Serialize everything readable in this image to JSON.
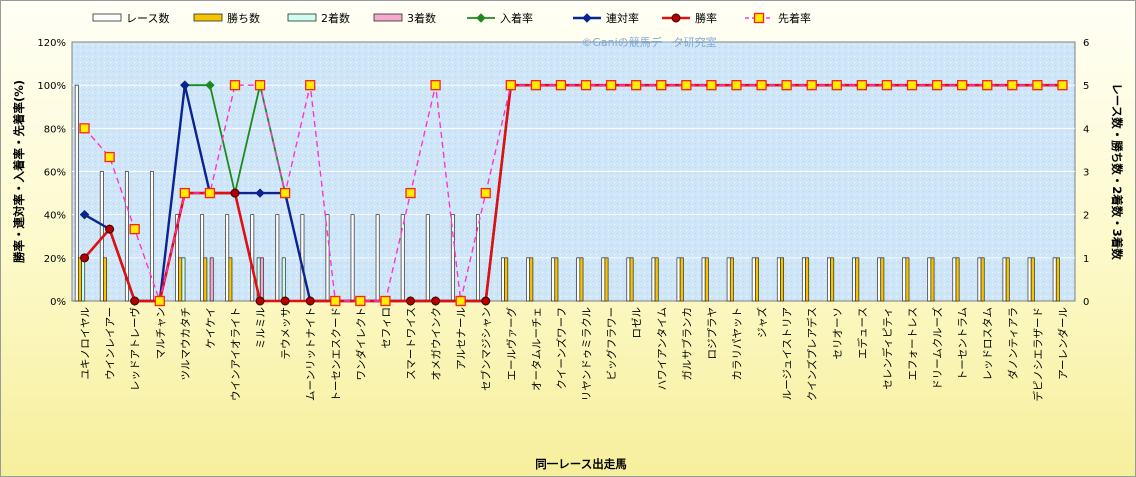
{
  "chart_data": {
    "type": "bar-line-combo",
    "watermark": "©Ganiの競馬データ研究室",
    "xlabel": "同一レース出走馬",
    "ylabel_left": "勝率・連対率・入着率・先着率(%)",
    "ylabel_right": "レース数・勝ち数・2着数・3着数",
    "ylim_left": [
      0,
      120
    ],
    "yticks_left": [
      "0%",
      "20%",
      "40%",
      "60%",
      "80%",
      "100%",
      "120%"
    ],
    "ylim_right": [
      0,
      6
    ],
    "yticks_right": [
      "0",
      "1",
      "2",
      "3",
      "4",
      "5",
      "6"
    ],
    "legend_position": "top",
    "categories": [
      "ユキノロイヤル",
      "ウインレイアー",
      "レッドアトレーヴ",
      "マルチャン",
      "ツルマウカタチ",
      "ケイケイ",
      "ウインアイオライト",
      "ミルミル",
      "テウメッサ",
      "ムーンリットナイト",
      "トーセンエスクード",
      "ワンダイレクト",
      "セフィロ",
      "スマートワイス",
      "オメガウインク",
      "アルセナール",
      "セブンマジシャン",
      "エールヴァーグ",
      "オータムルーチェ",
      "クイーンズワーフ",
      "リヤンドゥミラクル",
      "ビッグフラワー",
      "ロゼル",
      "ハワイアンタイム",
      "ガルサブランカ",
      "ロジプラヤ",
      "カラリパヤット",
      "ジャズ",
      "ルージュイストリア",
      "クインズプレアデス",
      "セリオーソ",
      "エデュース",
      "セレンディピティ",
      "エフォートレス",
      "ドリームクルーズ",
      "トーセントラム",
      "レッドロスタム",
      "ダノンティアラ",
      "デピノシエラザード",
      "アーレンダール"
    ],
    "series": [
      {
        "name": "レース数",
        "kind": "bar",
        "axis": "right",
        "values": [
          5,
          3,
          3,
          3,
          2,
          2,
          2,
          2,
          2,
          2,
          2,
          2,
          2,
          2,
          2,
          2,
          2,
          1,
          1,
          1,
          1,
          1,
          1,
          1,
          1,
          1,
          1,
          1,
          1,
          1,
          1,
          1,
          1,
          1,
          1,
          1,
          1,
          1,
          1,
          1
        ]
      },
      {
        "name": "勝ち数",
        "kind": "bar",
        "axis": "right",
        "values": [
          1,
          1,
          0,
          0,
          1,
          1,
          1,
          0,
          0,
          0,
          0,
          0,
          0,
          0,
          0,
          0,
          0,
          1,
          1,
          1,
          1,
          1,
          1,
          1,
          1,
          1,
          1,
          1,
          1,
          1,
          1,
          1,
          1,
          1,
          1,
          1,
          1,
          1,
          1,
          1
        ]
      },
      {
        "name": "2着数",
        "kind": "bar",
        "axis": "right",
        "values": [
          1,
          0,
          0,
          0,
          1,
          0,
          0,
          1,
          1,
          0,
          0,
          0,
          0,
          0,
          0,
          0,
          0,
          0,
          0,
          0,
          0,
          0,
          0,
          0,
          0,
          0,
          0,
          0,
          0,
          0,
          0,
          0,
          0,
          0,
          0,
          0,
          0,
          0,
          0,
          0
        ]
      },
      {
        "name": "3着数",
        "kind": "bar",
        "axis": "right",
        "values": [
          0,
          0,
          0,
          0,
          0,
          1,
          0,
          1,
          0,
          0,
          0,
          0,
          0,
          0,
          0,
          0,
          0,
          0,
          0,
          0,
          0,
          0,
          0,
          0,
          0,
          0,
          0,
          0,
          0,
          0,
          0,
          0,
          0,
          0,
          0,
          0,
          0,
          0,
          0,
          0
        ]
      },
      {
        "name": "入着率",
        "kind": "line",
        "axis": "left",
        "values": [
          40,
          33.3,
          0,
          0,
          100,
          100,
          50,
          100,
          50,
          0,
          0,
          0,
          0,
          0,
          0,
          0,
          0,
          100,
          100,
          100,
          100,
          100,
          100,
          100,
          100,
          100,
          100,
          100,
          100,
          100,
          100,
          100,
          100,
          100,
          100,
          100,
          100,
          100,
          100,
          100
        ]
      },
      {
        "name": "連対率",
        "kind": "line",
        "axis": "left",
        "values": [
          40,
          33.3,
          0,
          0,
          100,
          50,
          50,
          50,
          50,
          0,
          0,
          0,
          0,
          0,
          0,
          0,
          0,
          100,
          100,
          100,
          100,
          100,
          100,
          100,
          100,
          100,
          100,
          100,
          100,
          100,
          100,
          100,
          100,
          100,
          100,
          100,
          100,
          100,
          100,
          100
        ]
      },
      {
        "name": "勝率",
        "kind": "line",
        "axis": "left",
        "values": [
          20,
          33.3,
          0,
          0,
          50,
          50,
          50,
          0,
          0,
          0,
          0,
          0,
          0,
          0,
          0,
          0,
          0,
          100,
          100,
          100,
          100,
          100,
          100,
          100,
          100,
          100,
          100,
          100,
          100,
          100,
          100,
          100,
          100,
          100,
          100,
          100,
          100,
          100,
          100,
          100
        ]
      },
      {
        "name": "先着率",
        "kind": "line",
        "axis": "left",
        "values": [
          80,
          66.7,
          33.3,
          0,
          50,
          50,
          100,
          100,
          50,
          100,
          0,
          0,
          0,
          50,
          100,
          0,
          50,
          100,
          100,
          100,
          100,
          100,
          100,
          100,
          100,
          100,
          100,
          100,
          100,
          100,
          100,
          100,
          100,
          100,
          100,
          100,
          100,
          100,
          100,
          100
        ]
      }
    ],
    "colors": {
      "race": "#ffffff",
      "win": "#f5c400",
      "second": "#ccfff0",
      "third": "#f7a8cf",
      "placed": "#1e8a1e",
      "rentai": "#0b2490",
      "winrate": "#e01010",
      "beatrate": "#ff33cc",
      "beat_marker_fill": "#ffee00",
      "beat_marker_stroke": "#ff2020",
      "plot_bg": "#cfe6f8"
    }
  }
}
